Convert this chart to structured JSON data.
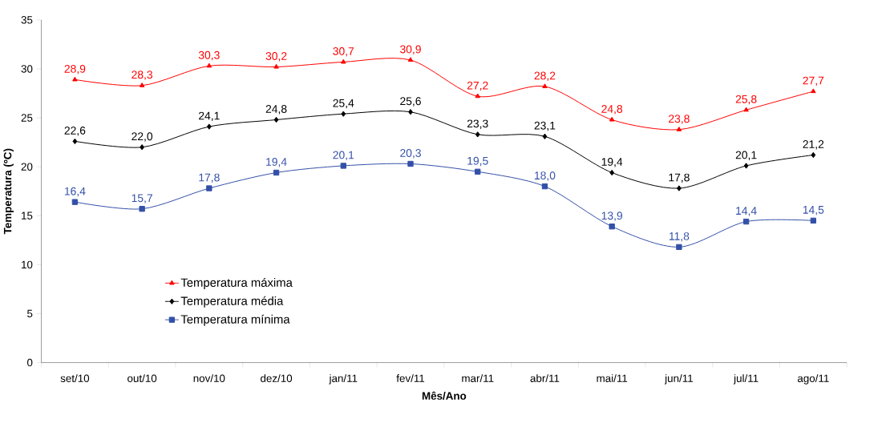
{
  "chart_data": {
    "type": "line",
    "xlabel": "Mês/Ano",
    "ylabel": "Temperatura (ºC)",
    "categories": [
      "set/10",
      "out/10",
      "nov/10",
      "dez/10",
      "jan/11",
      "fev/11",
      "mar/11",
      "abr/11",
      "mai/11",
      "jun/11",
      "jul/11",
      "ago/11"
    ],
    "ylim": [
      0,
      35
    ],
    "yticks": [
      0,
      5,
      10,
      15,
      20,
      25,
      30,
      35
    ],
    "grid": false,
    "legend": "bottom left",
    "line_style": "solid",
    "series": [
      {
        "name": "Temperatura máxima",
        "color": "#ff0000",
        "marker": "triangle",
        "values": [
          28.9,
          28.3,
          30.3,
          30.2,
          30.7,
          30.9,
          27.2,
          28.2,
          24.8,
          23.8,
          25.8,
          27.7
        ],
        "value_labels": [
          "28,9",
          "28,3",
          "30,3",
          "30,2",
          "30,7",
          "30,9",
          "27,2",
          "28,2",
          "24,8",
          "23,8",
          "25,8",
          "27,7"
        ]
      },
      {
        "name": "Temperatura média",
        "color": "#000000",
        "marker": "diamond",
        "values": [
          22.6,
          22.0,
          24.1,
          24.8,
          25.4,
          25.6,
          23.3,
          23.1,
          19.4,
          17.8,
          20.1,
          21.2
        ],
        "value_labels": [
          "22,6",
          "22,0",
          "24,1",
          "24,8",
          "25,4",
          "25,6",
          "23,3",
          "23,1",
          "19,4",
          "17,8",
          "20,1",
          "21,2"
        ]
      },
      {
        "name": "Temperatura mínima",
        "color": "#3350a8",
        "marker": "square",
        "values": [
          16.4,
          15.7,
          17.8,
          19.4,
          20.1,
          20.3,
          19.5,
          18.0,
          13.9,
          11.8,
          14.4,
          14.5
        ],
        "value_labels": [
          "16,4",
          "15,7",
          "17,8",
          "19,4",
          "20,1",
          "20,3",
          "19,5",
          "18,0",
          "13,9",
          "11,8",
          "14,4",
          "14,5"
        ]
      }
    ]
  }
}
